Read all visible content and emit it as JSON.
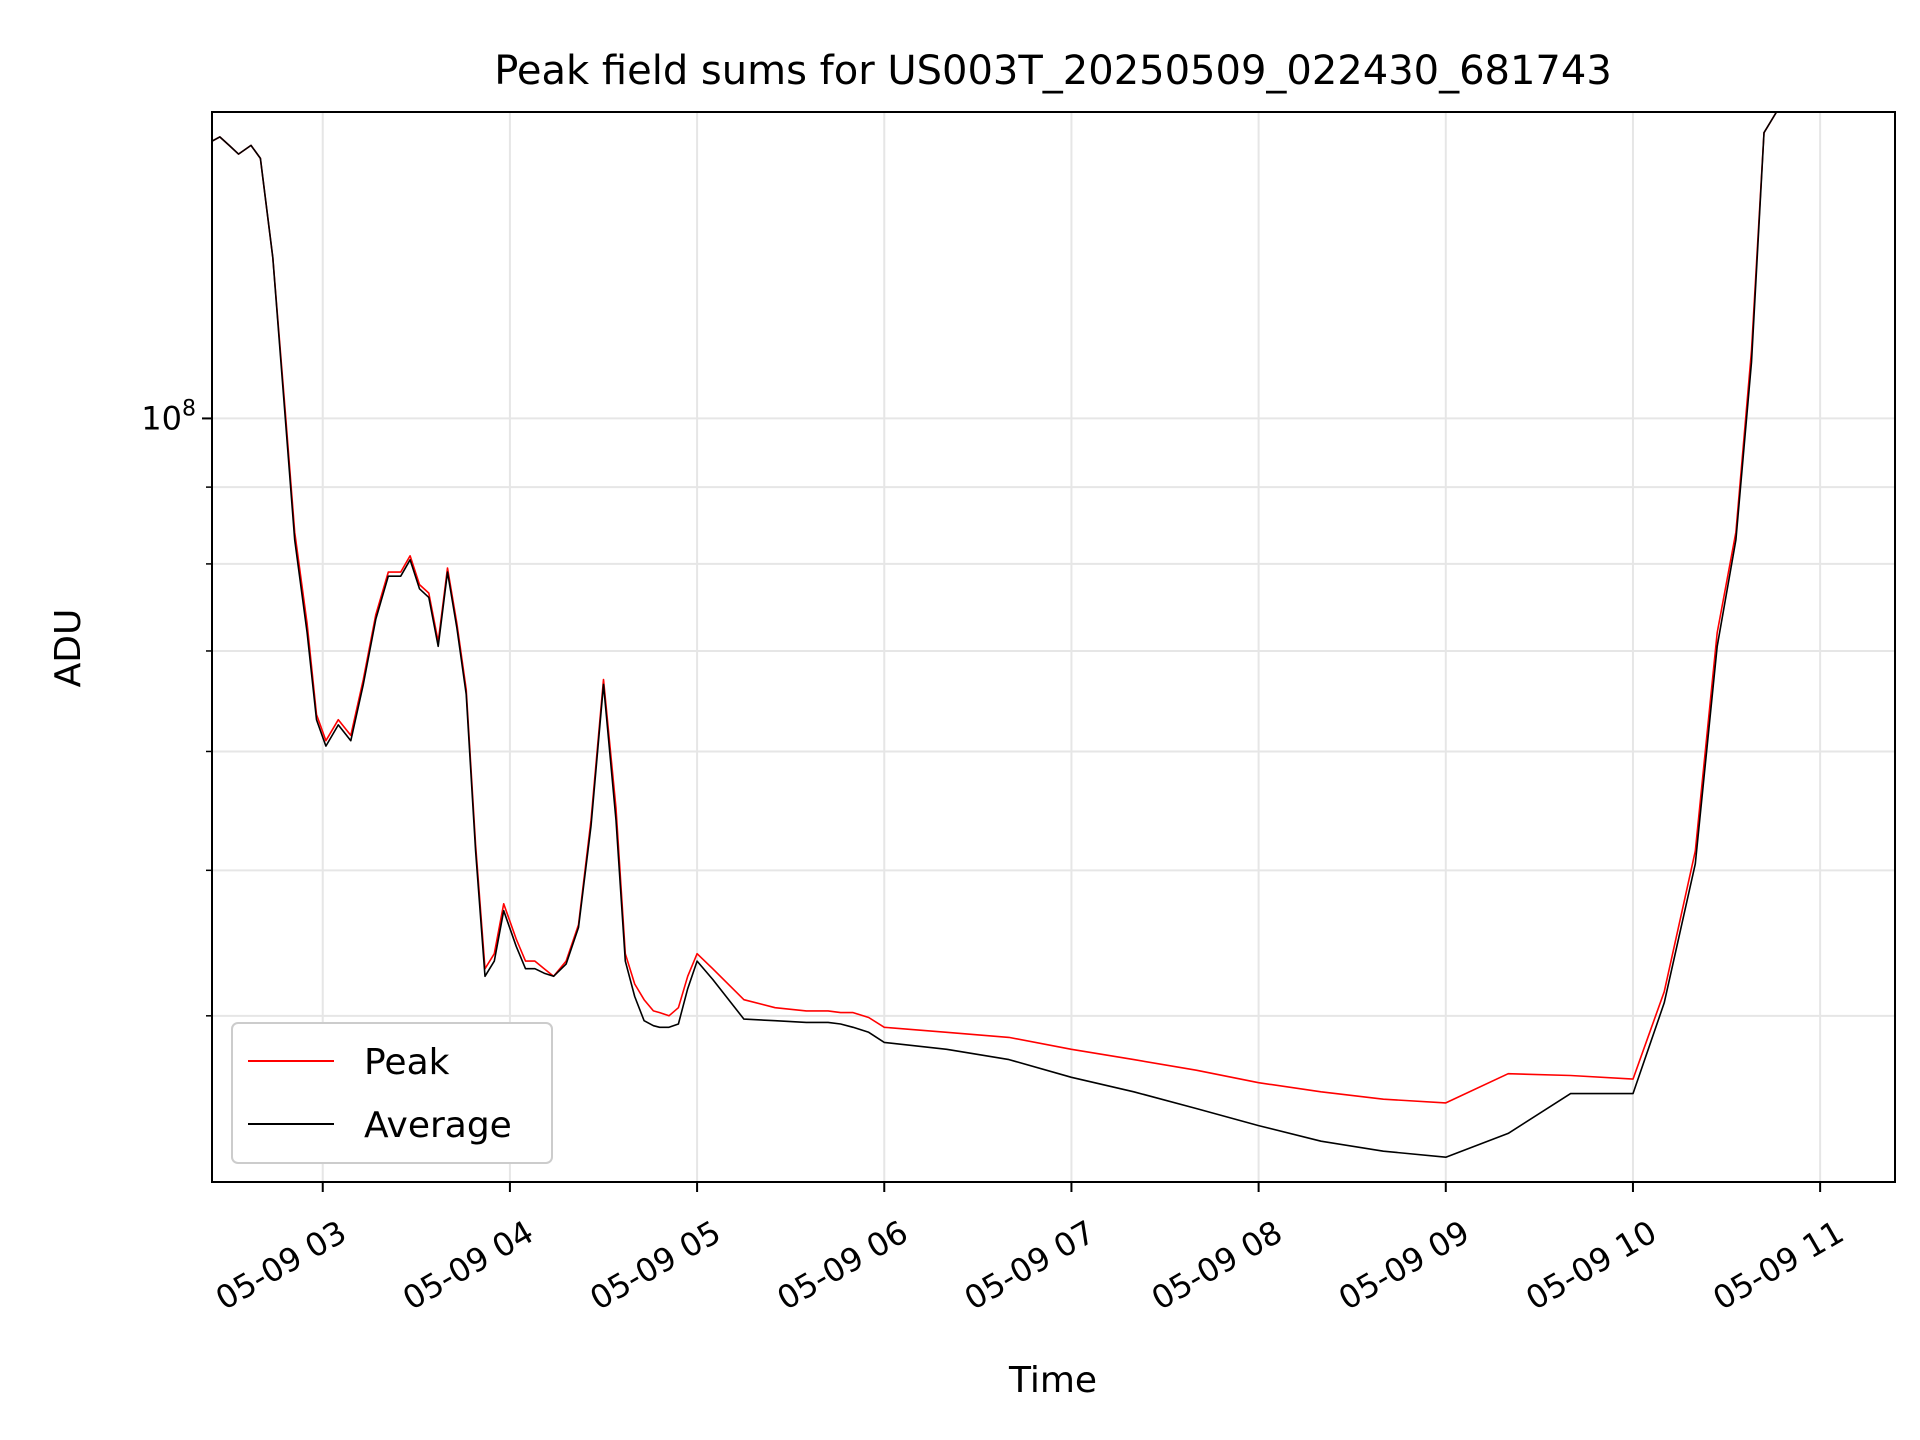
{
  "chart_data": {
    "type": "line",
    "title": "Peak field sums for US003T_20250509_022430_681743",
    "xlabel": "Time",
    "ylabel": "ADU",
    "y_scale": "log",
    "ylim": [
      31000000,
      160000000
    ],
    "xlim": [
      "05-09 02:24:30",
      "05-09 11:24:00"
    ],
    "grid": true,
    "legend_position": "lower-left",
    "x_ticks": [
      {
        "t": "05-09 03:00",
        "label": "05-09 03"
      },
      {
        "t": "05-09 04:00",
        "label": "05-09 04"
      },
      {
        "t": "05-09 05:00",
        "label": "05-09 05"
      },
      {
        "t": "05-09 06:00",
        "label": "05-09 06"
      },
      {
        "t": "05-09 07:00",
        "label": "05-09 07"
      },
      {
        "t": "05-09 08:00",
        "label": "05-09 08"
      },
      {
        "t": "05-09 09:00",
        "label": "05-09 09"
      },
      {
        "t": "05-09 10:00",
        "label": "05-09 10"
      },
      {
        "t": "05-09 11:00",
        "label": "05-09 11"
      }
    ],
    "y_major_ticks": [
      {
        "value": 100000000,
        "label_base": "10",
        "label_exp": "8"
      }
    ],
    "y_minor_ticks": [
      40000000,
      50000000,
      60000000,
      70000000,
      80000000,
      90000000,
      200000000
    ],
    "series": [
      {
        "name": "Peak",
        "color": "#ff0000",
        "x": [
          "05-09 02:24:30",
          "05-09 02:27",
          "05-09 02:30",
          "05-09 02:33",
          "05-09 02:37",
          "05-09 02:40",
          "05-09 02:44",
          "05-09 02:48",
          "05-09 02:51",
          "05-09 02:55",
          "05-09 02:58",
          "05-09 03:01",
          "05-09 03:05",
          "05-09 03:09",
          "05-09 03:13",
          "05-09 03:17",
          "05-09 03:21",
          "05-09 03:25",
          "05-09 03:28",
          "05-09 03:31",
          "05-09 03:34",
          "05-09 03:37",
          "05-09 03:40",
          "05-09 03:43",
          "05-09 03:46",
          "05-09 03:49",
          "05-09 03:52",
          "05-09 03:55",
          "05-09 03:58",
          "05-09 04:02",
          "05-09 04:05",
          "05-09 04:08",
          "05-09 04:11",
          "05-09 04:14",
          "05-09 04:18",
          "05-09 04:22",
          "05-09 04:26",
          "05-09 04:30",
          "05-09 04:34",
          "05-09 04:37",
          "05-09 04:40",
          "05-09 04:43",
          "05-09 04:46",
          "05-09 04:48",
          "05-09 04:51",
          "05-09 04:54",
          "05-09 04:57",
          "05-09 05:00",
          "05-09 05:05",
          "05-09 05:15",
          "05-09 05:25",
          "05-09 05:35",
          "05-09 05:42",
          "05-09 05:46",
          "05-09 05:50",
          "05-09 05:55",
          "05-09 06:00",
          "05-09 06:20",
          "05-09 06:40",
          "05-09 07:00",
          "05-09 07:20",
          "05-09 07:40",
          "05-09 08:00",
          "05-09 08:20",
          "05-09 08:40",
          "05-09 09:00",
          "05-09 09:20",
          "05-09 09:40",
          "05-09 10:00",
          "05-09 10:10",
          "05-09 10:20",
          "05-09 10:27",
          "05-09 10:33",
          "05-09 10:38",
          "05-09 10:42",
          "05-09 10:46",
          "05-09 10:50",
          "05-09 10:55",
          "05-09 11:00",
          "05-09 11:04",
          "05-09 11:08",
          "05-09 11:12",
          "05-09 11:16",
          "05-09 11:20",
          "05-09 11:24"
        ],
        "y": [
          153000000,
          154000000,
          152000000,
          150000000,
          152000000,
          149000000,
          128000000,
          101000000,
          84000000,
          73000000,
          63500000,
          61000000,
          63000000,
          61500000,
          67000000,
          74000000,
          79000000,
          79000000,
          81000000,
          77500000,
          76500000,
          71000000,
          79500000,
          73000000,
          66000000,
          52000000,
          43000000,
          44000000,
          47500000,
          45000000,
          43500000,
          43500000,
          43000000,
          42500000,
          43500000,
          46000000,
          54000000,
          67000000,
          55000000,
          44000000,
          42000000,
          41000000,
          40300000,
          40200000,
          40000000,
          40500000,
          42500000,
          44000000,
          43000000,
          41000000,
          40500000,
          40300000,
          40300000,
          40200000,
          40200000,
          39900000,
          39300000,
          39000000,
          38700000,
          38000000,
          37400000,
          36800000,
          36100000,
          35600000,
          35200000,
          35000000,
          36600000,
          36500000,
          36300000,
          41500000,
          51500000,
          72000000,
          84000000,
          111000000,
          155000000,
          160000000,
          160000000,
          160000000,
          160000000,
          160000000,
          160000000,
          160000000,
          160000000,
          160000000,
          160000000
        ]
      },
      {
        "name": "Average",
        "color": "#000000",
        "x": [
          "05-09 02:24:30",
          "05-09 02:27",
          "05-09 02:30",
          "05-09 02:33",
          "05-09 02:37",
          "05-09 02:40",
          "05-09 02:44",
          "05-09 02:48",
          "05-09 02:51",
          "05-09 02:55",
          "05-09 02:58",
          "05-09 03:01",
          "05-09 03:05",
          "05-09 03:09",
          "05-09 03:13",
          "05-09 03:17",
          "05-09 03:21",
          "05-09 03:25",
          "05-09 03:28",
          "05-09 03:31",
          "05-09 03:34",
          "05-09 03:37",
          "05-09 03:40",
          "05-09 03:43",
          "05-09 03:46",
          "05-09 03:49",
          "05-09 03:52",
          "05-09 03:55",
          "05-09 03:58",
          "05-09 04:02",
          "05-09 04:05",
          "05-09 04:08",
          "05-09 04:11",
          "05-09 04:14",
          "05-09 04:18",
          "05-09 04:22",
          "05-09 04:26",
          "05-09 04:30",
          "05-09 04:34",
          "05-09 04:37",
          "05-09 04:40",
          "05-09 04:43",
          "05-09 04:46",
          "05-09 04:48",
          "05-09 04:51",
          "05-09 04:54",
          "05-09 04:57",
          "05-09 05:00",
          "05-09 05:05",
          "05-09 05:15",
          "05-09 05:25",
          "05-09 05:35",
          "05-09 05:42",
          "05-09 05:46",
          "05-09 05:50",
          "05-09 05:55",
          "05-09 06:00",
          "05-09 06:20",
          "05-09 06:40",
          "05-09 07:00",
          "05-09 07:20",
          "05-09 07:40",
          "05-09 08:00",
          "05-09 08:20",
          "05-09 08:40",
          "05-09 09:00",
          "05-09 09:20",
          "05-09 09:40",
          "05-09 10:00",
          "05-09 10:10",
          "05-09 10:20",
          "05-09 10:27",
          "05-09 10:33",
          "05-09 10:38",
          "05-09 10:42",
          "05-09 10:46",
          "05-09 10:50",
          "05-09 10:55",
          "05-09 11:00",
          "05-09 11:04",
          "05-09 11:08",
          "05-09 11:12",
          "05-09 11:16",
          "05-09 11:20",
          "05-09 11:24"
        ],
        "y": [
          153000000,
          154000000,
          152000000,
          150000000,
          152000000,
          149000000,
          128000000,
          100000000,
          83000000,
          72000000,
          63000000,
          60500000,
          62500000,
          61000000,
          66500000,
          73500000,
          78500000,
          78500000,
          80500000,
          77000000,
          76000000,
          70500000,
          79000000,
          72500000,
          65500000,
          51500000,
          42500000,
          43500000,
          47000000,
          44500000,
          43000000,
          43000000,
          42700000,
          42500000,
          43300000,
          45800000,
          53500000,
          66500000,
          54000000,
          43500000,
          41200000,
          39700000,
          39400000,
          39300000,
          39300000,
          39500000,
          41700000,
          43500000,
          42300000,
          39800000,
          39700000,
          39600000,
          39600000,
          39500000,
          39300000,
          39000000,
          38400000,
          38000000,
          37400000,
          36400000,
          35600000,
          34700000,
          33800000,
          33000000,
          32500000,
          32200000,
          33400000,
          35500000,
          35500000,
          40800000,
          50500000,
          70500000,
          83000000,
          109000000,
          155000000,
          160000000,
          160000000,
          160000000,
          160000000,
          160000000,
          160000000,
          160000000,
          160000000,
          160000000,
          160000000
        ]
      }
    ]
  }
}
